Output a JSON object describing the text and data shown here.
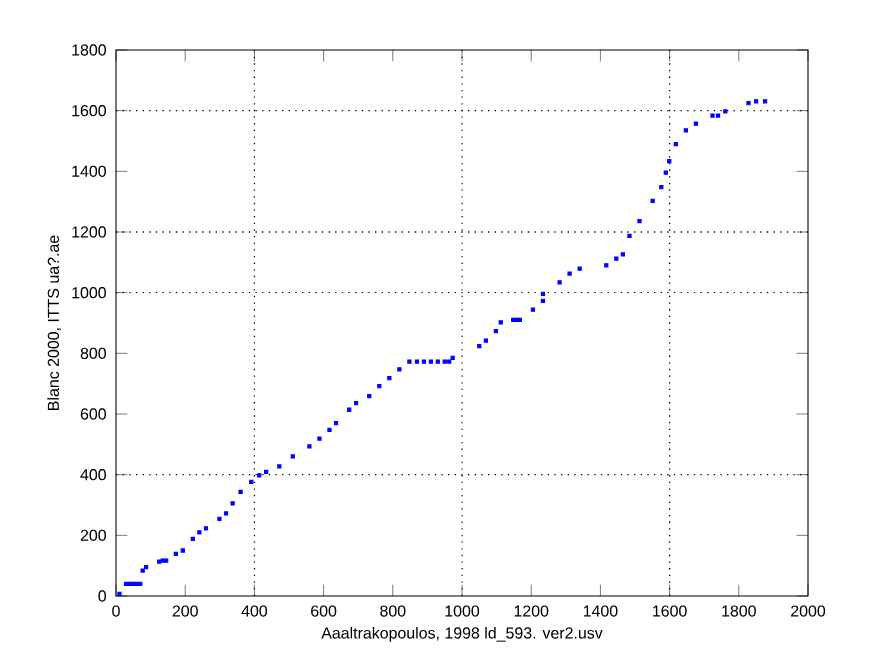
{
  "chart_data": {
    "type": "scatter",
    "xlabel": "Aaaltrakopoulos, 1998 ld_593. ver2.usv",
    "ylabel": "Blanc 2000, ITTS ua?.ae",
    "xlim": [
      0,
      2000
    ],
    "ylim": [
      0,
      1800
    ],
    "xticks": [
      0,
      200,
      400,
      600,
      800,
      1000,
      1200,
      1400,
      1600,
      1800,
      2000
    ],
    "yticks": [
      0,
      200,
      400,
      600,
      800,
      1000,
      1200,
      1400,
      1600,
      1800
    ],
    "marker": "square",
    "grid": false,
    "ref_lines": [
      {
        "axis": "x",
        "value": 400,
        "line_style": "dotted"
      },
      {
        "axis": "x",
        "value": 1000,
        "line_style": "dotted"
      },
      {
        "axis": "x",
        "value": 1600,
        "line_style": "dotted"
      },
      {
        "axis": "y",
        "value": 400,
        "line_style": "dotted"
      },
      {
        "axis": "y",
        "value": 1000,
        "line_style": "dotted"
      },
      {
        "axis": "y",
        "value": 1200,
        "line_style": "dotted"
      },
      {
        "axis": "y",
        "value": 1600,
        "line_style": "dotted"
      }
    ],
    "series": [
      {
        "color": "#0000ff",
        "x": [
          10,
          29,
          40,
          50,
          60,
          70,
          77,
          87,
          125,
          135,
          145,
          173,
          193,
          222,
          241,
          260,
          299,
          318,
          337,
          360,
          391,
          414,
          434,
          472,
          511,
          559,
          588,
          617,
          636,
          674,
          694,
          732,
          761,
          790,
          819,
          848,
          870,
          890,
          910,
          930,
          950,
          963,
          973,
          1050,
          1069,
          1098,
          1112,
          1148,
          1158,
          1167,
          1205,
          1234,
          1234,
          1282,
          1311,
          1340,
          1417,
          1446,
          1465,
          1484,
          1513,
          1551,
          1576,
          1589,
          1599,
          1618,
          1647,
          1676,
          1724,
          1740,
          1761,
          1828,
          1850,
          1876
        ],
        "values": [
          7,
          40,
          40,
          40,
          40,
          40,
          84,
          95,
          113,
          117,
          117,
          139,
          150,
          188,
          210,
          223,
          254,
          272,
          305,
          343,
          376,
          398,
          409,
          427,
          460,
          493,
          519,
          548,
          570,
          614,
          636,
          659,
          692,
          718,
          747,
          773,
          773,
          773,
          773,
          773,
          773,
          773,
          785,
          824,
          842,
          873,
          902,
          910,
          910,
          910,
          944,
          973,
          996,
          1034,
          1063,
          1079,
          1090,
          1112,
          1126,
          1187,
          1236,
          1303,
          1348,
          1396,
          1434,
          1490,
          1535,
          1557,
          1584,
          1584,
          1598,
          1625,
          1631,
          1631
        ]
      }
    ]
  }
}
